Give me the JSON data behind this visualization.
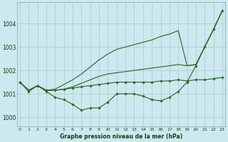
{
  "bg_color": "#cde8ee",
  "grid_color": "#a8cccc",
  "line_color": "#2d6b2d",
  "title": "Graphe pression niveau de la mer (hPa)",
  "yticks": [
    1000,
    1001,
    1002,
    1003,
    1004
  ],
  "ylim": [
    999.6,
    1004.9
  ],
  "xlim": [
    -0.3,
    23.3
  ],
  "x": [
    0,
    1,
    2,
    3,
    4,
    5,
    6,
    7,
    8,
    9,
    10,
    11,
    12,
    13,
    14,
    15,
    16,
    17,
    18,
    19,
    20,
    21,
    22,
    23
  ],
  "series_marked1": [
    1001.5,
    1001.1,
    1001.35,
    1001.1,
    1000.85,
    1000.75,
    1000.55,
    1000.3,
    1000.4,
    1000.4,
    1000.65,
    1001.0,
    1001.0,
    1001.0,
    1000.9,
    1000.75,
    1000.7,
    1000.85,
    1001.1,
    1001.5,
    null,
    null,
    null,
    null
  ],
  "series_marked2": [
    null,
    null,
    null,
    null,
    null,
    null,
    null,
    null,
    null,
    null,
    null,
    null,
    null,
    null,
    null,
    null,
    null,
    null,
    null,
    null,
    1002.2,
    1003.0,
    1003.75,
    1004.55
  ],
  "series_flat": [
    1001.5,
    1001.15,
    1001.35,
    1001.15,
    1001.15,
    1001.2,
    1001.25,
    1001.3,
    1001.35,
    1001.4,
    1001.45,
    1001.5,
    1001.5,
    1001.5,
    1001.5,
    1001.5,
    1001.55,
    1001.55,
    1001.6,
    1001.55,
    1001.6,
    1001.6,
    1001.65,
    1001.7
  ],
  "series_rise1": [
    1001.5,
    1001.15,
    1001.35,
    1001.15,
    1001.15,
    1001.2,
    1001.3,
    1001.45,
    1001.6,
    1001.75,
    1001.85,
    1001.9,
    1001.95,
    1002.0,
    1002.05,
    1002.1,
    1002.15,
    1002.2,
    1002.25,
    1002.2,
    1002.25,
    1003.0,
    1003.75,
    1004.55
  ],
  "series_rise2": [
    1001.5,
    1001.15,
    1001.35,
    1001.15,
    1001.2,
    1001.4,
    1001.6,
    1001.85,
    1002.15,
    1002.45,
    1002.7,
    1002.9,
    1003.0,
    1003.1,
    1003.2,
    1003.3,
    1003.45,
    1003.55,
    1003.7,
    1002.2,
    1002.25,
    1003.0,
    1003.75,
    1004.55
  ]
}
